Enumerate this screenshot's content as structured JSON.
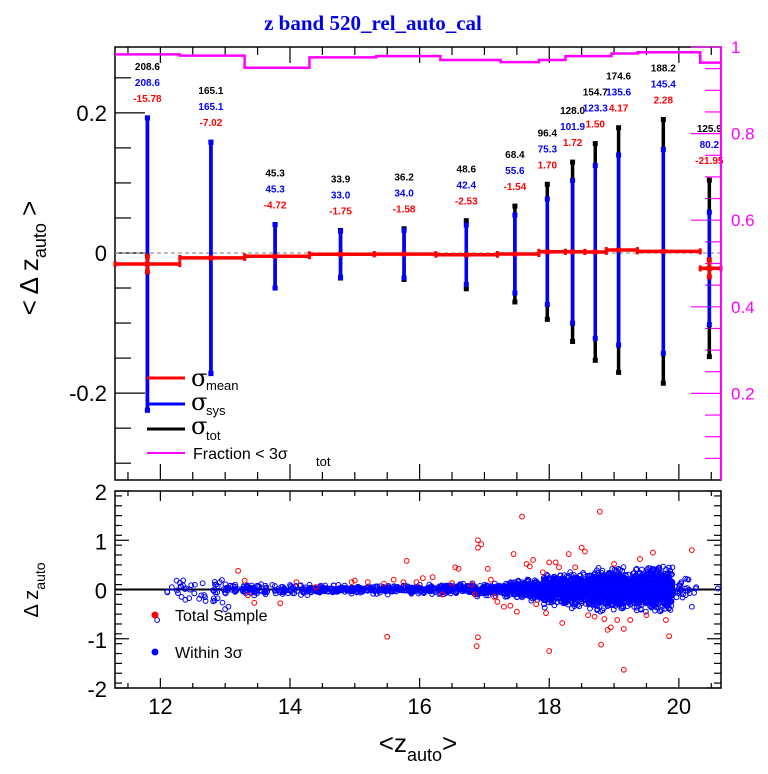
{
  "chart_data": [
    {
      "type": "line",
      "panel": "top",
      "title": "z band 520_rel_auto_cal",
      "xlabel": "<z_auto>",
      "ylabel": "< Δ z_auto >",
      "ylabel_right": "Fraction < 3σ_tot",
      "xlim": [
        11.3,
        20.65
      ],
      "ylim": [
        -0.324,
        0.294
      ],
      "ylim_right": [
        0,
        1
      ],
      "xticks": [
        12,
        14,
        16,
        18,
        20
      ],
      "yticks": [
        -0.2,
        0,
        0.2
      ],
      "yticks_labels": [
        "-0.2",
        "0",
        "0.2"
      ],
      "yticks_right": [
        0.2,
        0.4,
        0.6,
        0.8,
        1
      ],
      "yticks_right_labels": [
        "0.2",
        "0.4",
        "0.6",
        "0.8",
        "1"
      ],
      "reference_line": 0,
      "legend": {
        "position": "bottom-left",
        "entries": [
          {
            "symbol": "σ",
            "sub": "mean",
            "color": "#ff0000"
          },
          {
            "symbol": "σ",
            "sub": "sys",
            "color": "#0000ff"
          },
          {
            "symbol": "σ",
            "sub": "tot",
            "color": "#000000"
          },
          {
            "text": "Fraction < 3σ",
            "sub": "tot",
            "color": "#ff00ff"
          }
        ]
      },
      "colors": {
        "mean": "#ff0000",
        "sys": "#0000ff",
        "tot": "#000000",
        "fraction": "#ff00ff",
        "zero": "#999999"
      },
      "bins": [
        {
          "x": 11.8,
          "xlo": 11.3,
          "xhi": 12.3,
          "mean": -0.0158,
          "sigma_mean": 0.011,
          "sys": 0.2086,
          "tot": 0.2086,
          "labels": {
            "tot": "208.6",
            "sys": "208.6",
            "mean": "-15.78"
          }
        },
        {
          "x": 12.78,
          "xlo": 12.3,
          "xhi": 13.3,
          "mean": -0.007,
          "sigma_mean": 0.004,
          "sys": 0.1651,
          "tot": 0.1651,
          "labels": {
            "tot": "165.1",
            "sys": "165.1",
            "mean": "-7.02"
          }
        },
        {
          "x": 13.77,
          "xlo": 13.3,
          "xhi": 14.3,
          "mean": -0.0047,
          "sigma_mean": 0.002,
          "sys": 0.0453,
          "tot": 0.0453,
          "labels": {
            "tot": "45.3",
            "sys": "45.3",
            "mean": "-4.72"
          }
        },
        {
          "x": 14.78,
          "xlo": 14.3,
          "xhi": 15.3,
          "mean": -0.0018,
          "sigma_mean": 0.0012,
          "sys": 0.033,
          "tot": 0.0339,
          "labels": {
            "tot": "33.9",
            "sys": "33.0",
            "mean": "-1.75"
          }
        },
        {
          "x": 15.76,
          "xlo": 15.3,
          "xhi": 16.25,
          "mean": -0.0016,
          "sigma_mean": 0.0012,
          "sys": 0.034,
          "tot": 0.0362,
          "labels": {
            "tot": "36.2",
            "sys": "34.0",
            "mean": "-1.58"
          }
        },
        {
          "x": 16.72,
          "xlo": 16.25,
          "xhi": 17.2,
          "mean": -0.0025,
          "sigma_mean": 0.0012,
          "sys": 0.0424,
          "tot": 0.0486,
          "labels": {
            "tot": "48.6",
            "sys": "42.4",
            "mean": "-2.53"
          }
        },
        {
          "x": 17.47,
          "xlo": 17.2,
          "xhi": 17.84,
          "mean": -0.0015,
          "sigma_mean": 0.0012,
          "sys": 0.0556,
          "tot": 0.0684,
          "labels": {
            "tot": "68.4",
            "sys": "55.6",
            "mean": "-1.54"
          }
        },
        {
          "x": 17.97,
          "xlo": 17.84,
          "xhi": 18.25,
          "mean": 0.0017,
          "sigma_mean": 0.0015,
          "sys": 0.0753,
          "tot": 0.0964,
          "labels": {
            "tot": "96.4",
            "sys": "75.3",
            "mean": "1.70"
          }
        },
        {
          "x": 18.36,
          "xlo": 18.25,
          "xhi": 18.55,
          "mean": 0.0017,
          "sigma_mean": 0.0015,
          "sys": 0.1019,
          "tot": 0.128,
          "labels": {
            "tot": "128.0",
            "sys": "101.9",
            "mean": "1.72"
          }
        },
        {
          "x": 18.71,
          "xlo": 18.55,
          "xhi": 18.88,
          "mean": 0.0015,
          "sigma_mean": 0.0015,
          "sys": 0.1233,
          "tot": 0.1547,
          "labels": {
            "tot": "154.7",
            "sys": "123.3",
            "mean": "1.50"
          }
        },
        {
          "x": 19.07,
          "xlo": 18.88,
          "xhi": 19.36,
          "mean": 0.0042,
          "sigma_mean": 0.002,
          "sys": 0.1356,
          "tot": 0.1746,
          "labels": {
            "tot": "174.6",
            "sys": "135.6",
            "mean": "4.17"
          }
        },
        {
          "x": 19.76,
          "xlo": 19.36,
          "xhi": 20.33,
          "mean": 0.0023,
          "sigma_mean": 0.0015,
          "sys": 0.1454,
          "tot": 0.1882,
          "labels": {
            "tot": "188.2",
            "sys": "145.4",
            "mean": "2.28"
          }
        },
        {
          "x": 20.47,
          "xlo": 20.33,
          "xhi": 20.65,
          "mean": -0.022,
          "sigma_mean": 0.012,
          "sys": 0.0802,
          "tot": 0.1259,
          "labels": {
            "tot": "125.9",
            "sys": "80.2",
            "mean": "-21.95"
          }
        }
      ],
      "fraction_steps": [
        {
          "xlo": 11.3,
          "xhi": 12.3,
          "value": 0.983
        },
        {
          "xlo": 12.3,
          "xhi": 13.3,
          "value": 0.98
        },
        {
          "xlo": 13.3,
          "xhi": 14.3,
          "value": 0.952
        },
        {
          "xlo": 14.3,
          "xhi": 15.33,
          "value": 0.976
        },
        {
          "xlo": 15.33,
          "xhi": 16.32,
          "value": 0.979
        },
        {
          "xlo": 16.32,
          "xhi": 17.25,
          "value": 0.97
        },
        {
          "xlo": 17.25,
          "xhi": 17.84,
          "value": 0.965
        },
        {
          "xlo": 17.84,
          "xhi": 18.25,
          "value": 0.97
        },
        {
          "xlo": 18.25,
          "xhi": 18.96,
          "value": 0.979
        },
        {
          "xlo": 18.96,
          "xhi": 19.36,
          "value": 0.985
        },
        {
          "xlo": 19.36,
          "xhi": 20.33,
          "value": 0.988
        },
        {
          "xlo": 20.33,
          "xhi": 20.65,
          "value": 0.964
        }
      ]
    },
    {
      "type": "scatter",
      "panel": "bottom",
      "xlabel": "<z_auto>",
      "ylabel": "Δ z_auto",
      "xlim": [
        11.3,
        20.65
      ],
      "ylim": [
        -2,
        2
      ],
      "xticks": [
        12,
        14,
        16,
        18,
        20
      ],
      "xticks_labels": [
        "12",
        "14",
        "16",
        "18",
        "20"
      ],
      "yticks": [
        -2,
        -1,
        0,
        1,
        2
      ],
      "yticks_labels": [
        "-2",
        "-1",
        "0",
        "1",
        "2"
      ],
      "reference_line": 0,
      "legend": {
        "position": "bottom-left",
        "entries": [
          {
            "label": "Total Sample",
            "color": "#ff0000"
          },
          {
            "label": "Within 3σ",
            "color": "#0000ff"
          }
        ]
      },
      "series": [
        {
          "name": "Total Sample",
          "color": "#ff0000",
          "marker": "open-circle",
          "points": [
            [
              13.2,
              0.38
            ],
            [
              13.3,
              0.18
            ],
            [
              13.35,
              -0.12
            ],
            [
              13.45,
              -0.27
            ],
            [
              13.85,
              -0.28
            ],
            [
              14.1,
              0.15
            ],
            [
              14.4,
              0.05
            ],
            [
              14.95,
              0.15
            ],
            [
              15.0,
              0.18
            ],
            [
              15.2,
              0.15
            ],
            [
              15.45,
              0.12
            ],
            [
              15.5,
              -0.96
            ],
            [
              15.6,
              0.2
            ],
            [
              15.75,
              0.15
            ],
            [
              15.8,
              0.58
            ],
            [
              15.95,
              0.15
            ],
            [
              16.05,
              0.23
            ],
            [
              16.2,
              0.25
            ],
            [
              16.35,
              -0.1
            ],
            [
              16.5,
              0.13
            ],
            [
              16.55,
              0.45
            ],
            [
              16.6,
              0.42
            ],
            [
              16.8,
              0.1
            ],
            [
              16.85,
              -0.1
            ],
            [
              16.9,
              0.85
            ],
            [
              16.9,
              1.0
            ],
            [
              16.95,
              0.92
            ],
            [
              16.9,
              -0.97
            ],
            [
              16.88,
              -1.15
            ],
            [
              17.05,
              0.42
            ],
            [
              17.1,
              0.2
            ],
            [
              17.15,
              -0.15
            ],
            [
              17.2,
              -0.25
            ],
            [
              17.3,
              -0.35
            ],
            [
              17.4,
              -0.33
            ],
            [
              17.45,
              0.72
            ],
            [
              17.5,
              -0.45
            ],
            [
              17.58,
              1.48
            ],
            [
              17.65,
              0.52
            ],
            [
              17.7,
              0.47
            ],
            [
              17.75,
              0.6
            ],
            [
              17.8,
              -0.3
            ],
            [
              17.9,
              0.35
            ],
            [
              17.95,
              -0.48
            ],
            [
              18.0,
              0.55
            ],
            [
              18.0,
              -1.25
            ],
            [
              18.1,
              0.55
            ],
            [
              18.15,
              0.45
            ],
            [
              18.2,
              -0.68
            ],
            [
              18.3,
              0.72
            ],
            [
              18.4,
              0.45
            ],
            [
              18.5,
              0.85
            ],
            [
              18.55,
              0.77
            ],
            [
              18.6,
              -0.52
            ],
            [
              18.7,
              -0.55
            ],
            [
              18.78,
              1.58
            ],
            [
              18.8,
              -1.12
            ],
            [
              18.85,
              -0.6
            ],
            [
              18.9,
              -0.82
            ],
            [
              18.95,
              -0.77
            ],
            [
              19.0,
              0.52
            ],
            [
              19.05,
              -0.62
            ],
            [
              19.15,
              -0.8
            ],
            [
              19.15,
              -1.63
            ],
            [
              19.25,
              -0.62
            ],
            [
              19.4,
              0.62
            ],
            [
              19.5,
              -0.52
            ],
            [
              19.6,
              0.75
            ],
            [
              19.8,
              -0.62
            ],
            [
              19.85,
              -0.95
            ],
            [
              20.2,
              0.8
            ]
          ]
        },
        {
          "name": "Within 3σ",
          "color": "#0000ff",
          "marker": "open-circle",
          "core_bands": [
            {
              "xlo": 12.1,
              "xhi": 13.0,
              "sigma": 0.15,
              "count": 40
            },
            {
              "xlo": 13.0,
              "xhi": 14.3,
              "sigma": 0.05,
              "count": 120
            },
            {
              "xlo": 14.3,
              "xhi": 16.3,
              "sigma": 0.035,
              "count": 300
            },
            {
              "xlo": 16.3,
              "xhi": 17.3,
              "sigma": 0.05,
              "count": 250
            },
            {
              "xlo": 17.3,
              "xhi": 17.9,
              "sigma": 0.08,
              "count": 350
            },
            {
              "xlo": 17.9,
              "xhi": 18.6,
              "sigma": 0.13,
              "count": 700
            },
            {
              "xlo": 18.6,
              "xhi": 19.4,
              "sigma": 0.16,
              "count": 1100
            },
            {
              "xlo": 19.4,
              "xhi": 19.9,
              "sigma": 0.18,
              "count": 700
            },
            {
              "xlo": 19.9,
              "xhi": 20.3,
              "sigma": 0.1,
              "count": 25
            }
          ],
          "points": [
            [
              11.95,
              -0.62
            ],
            [
              12.25,
              0.18
            ],
            [
              12.35,
              0.08
            ],
            [
              12.4,
              0.02
            ],
            [
              13.0,
              -0.4
            ],
            [
              13.05,
              -0.35
            ],
            [
              19.9,
              0.45
            ],
            [
              20.1,
              0.22
            ],
            [
              20.15,
              0.2
            ],
            [
              20.2,
              -0.35
            ],
            [
              20.6,
              0.02
            ]
          ]
        }
      ]
    }
  ]
}
